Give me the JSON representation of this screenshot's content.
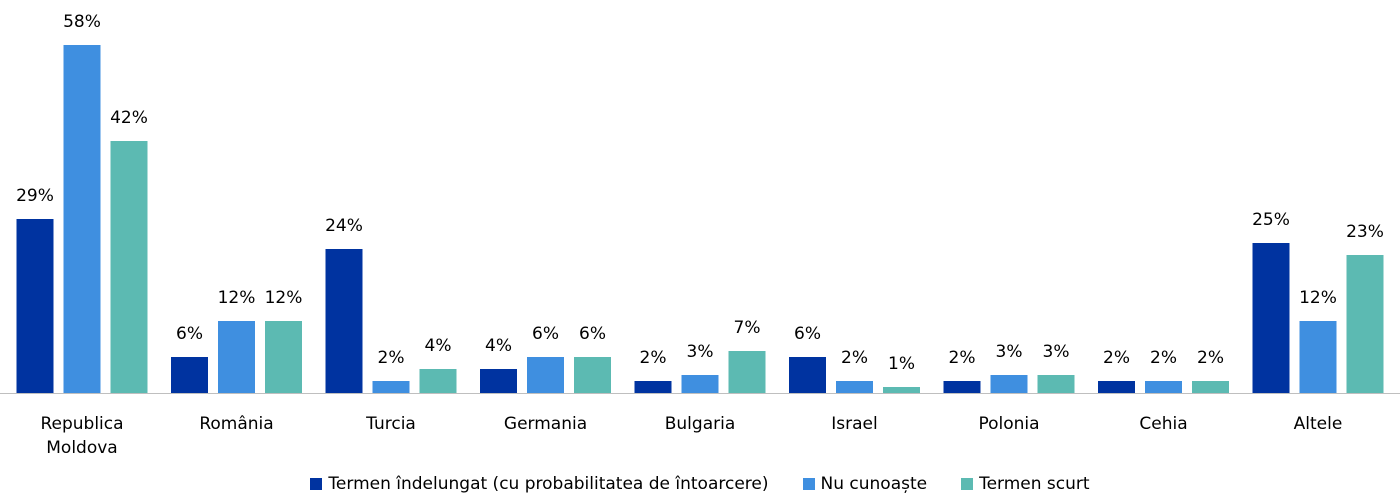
{
  "chart_data": {
    "type": "bar",
    "categories": [
      "Republica Moldova",
      "România",
      "Turcia",
      "Germania",
      "Bulgaria",
      "Israel",
      "Polonia",
      "Cehia",
      "Altele"
    ],
    "series": [
      {
        "name": "Termen îndelungat (cu probabilitatea de întoarcere)",
        "color": "#0033a0",
        "values": [
          29,
          6,
          24,
          4,
          2,
          6,
          2,
          2,
          25
        ],
        "value_labels": [
          "29%",
          "6%",
          "24%",
          "4%",
          "2%",
          "6%",
          "2%",
          "2%",
          "25%"
        ]
      },
      {
        "name": "Nu cunoaște",
        "color": "#3f8fe0",
        "values": [
          58,
          12,
          2,
          6,
          3,
          2,
          3,
          2,
          12
        ],
        "value_labels": [
          "58%",
          "12%",
          "2%",
          "6%",
          "3%",
          "2%",
          "3%",
          "2%",
          "12%"
        ]
      },
      {
        "name": "Termen scurt",
        "color": "#5cbab2",
        "values": [
          42,
          12,
          4,
          6,
          7,
          1,
          3,
          2,
          23
        ],
        "value_labels": [
          "42%",
          "12%",
          "4%",
          "6%",
          "7%",
          "1%",
          "3%",
          "2%",
          "23%"
        ]
      }
    ],
    "legend": "bottom"
  }
}
